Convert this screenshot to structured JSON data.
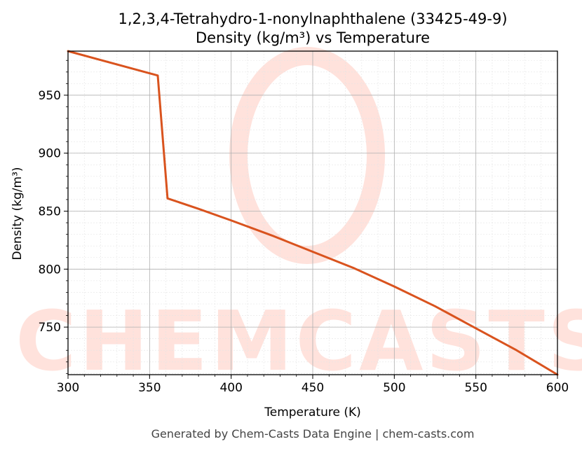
{
  "chart_data": {
    "type": "line",
    "title": "1,2,3,4-Tetrahydro-1-nonylnaphthalene (33425-49-9)",
    "subtitle": "Density (kg/m³) vs Temperature",
    "xlabel": "Temperature (K)",
    "ylabel": "Density (kg/m³)",
    "xlim": [
      300,
      600
    ],
    "ylim": [
      709,
      988
    ],
    "xticks": [
      300,
      350,
      400,
      450,
      500,
      550,
      600
    ],
    "yticks": [
      750,
      800,
      850,
      900,
      950
    ],
    "grid": true,
    "series": [
      {
        "color": "#d9531e",
        "x": [
          300,
          355,
          361,
          380,
          400,
          425,
          450,
          475,
          500,
          525,
          550,
          575,
          600
        ],
        "y": [
          988,
          967,
          861,
          852,
          842,
          829,
          815,
          801,
          785,
          768,
          749,
          730,
          709
        ]
      }
    ]
  },
  "watermark": {
    "text": "CHEMCASTS",
    "color": "#ffe2dc"
  },
  "footer": {
    "text": "Generated by Chem-Casts Data Engine | chem-casts.com"
  }
}
